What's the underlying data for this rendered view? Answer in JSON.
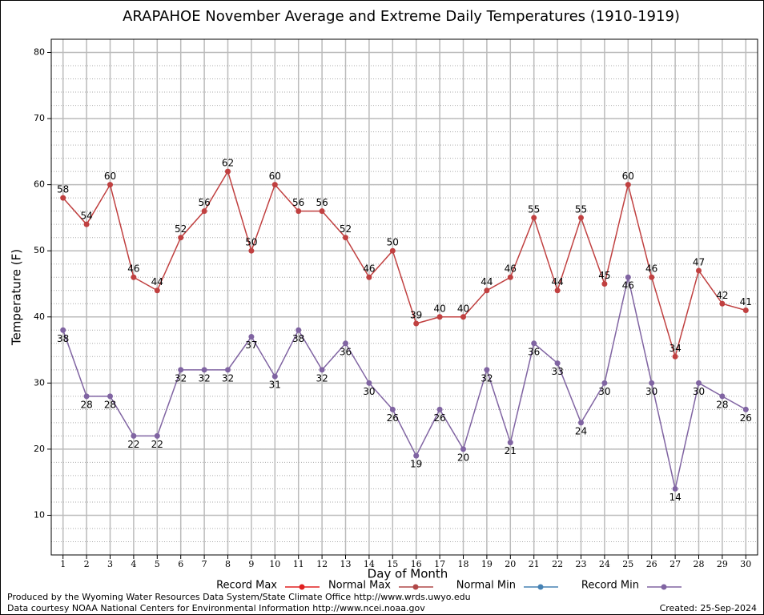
{
  "chart_data": {
    "type": "line",
    "title": "ARAPAHOE November Average and Extreme Daily Temperatures (1910-1919)",
    "xlabel": "Day of Month",
    "ylabel": "Temperature (F)",
    "x": [
      1,
      2,
      3,
      4,
      5,
      6,
      7,
      8,
      9,
      10,
      11,
      12,
      13,
      14,
      15,
      16,
      17,
      18,
      19,
      20,
      21,
      22,
      23,
      24,
      25,
      26,
      27,
      28,
      29,
      30
    ],
    "xlim": [
      0.5,
      30.5
    ],
    "xticks": [
      1,
      2,
      3,
      4,
      5,
      6,
      7,
      8,
      9,
      10,
      11,
      12,
      13,
      14,
      15,
      16,
      17,
      18,
      19,
      20,
      21,
      22,
      23,
      24,
      25,
      26,
      27,
      28,
      29,
      30
    ],
    "ylim": [
      4,
      82
    ],
    "yticks": [
      10,
      20,
      30,
      40,
      50,
      60,
      70,
      80
    ],
    "grid": true,
    "series": [
      {
        "name": "Record Max",
        "color": "#c04040",
        "legend_color": "#e02020",
        "label_position": "above",
        "values": [
          58,
          54,
          60,
          46,
          44,
          52,
          56,
          62,
          50,
          60,
          56,
          56,
          52,
          46,
          50,
          39,
          40,
          40,
          44,
          46,
          55,
          44,
          55,
          45,
          60,
          46,
          34,
          47,
          42,
          41
        ]
      },
      {
        "name": "Normal Max",
        "color": "#b04848",
        "values": [
          null,
          null,
          null,
          null,
          null,
          null,
          null,
          null,
          null,
          null,
          null,
          null,
          null,
          null,
          null,
          null,
          null,
          null,
          null,
          null,
          null,
          null,
          null,
          null,
          null,
          null,
          null,
          null,
          null,
          null
        ]
      },
      {
        "name": "Normal Min",
        "color": "#4682b4",
        "values": [
          null,
          null,
          null,
          null,
          null,
          null,
          null,
          null,
          null,
          null,
          null,
          null,
          null,
          null,
          null,
          null,
          null,
          null,
          null,
          null,
          null,
          null,
          null,
          null,
          null,
          null,
          null,
          null,
          null,
          null
        ]
      },
      {
        "name": "Record Min",
        "color": "#8064a2",
        "label_position": "below",
        "values": [
          38,
          28,
          28,
          22,
          22,
          32,
          32,
          32,
          37,
          31,
          38,
          32,
          36,
          30,
          26,
          19,
          26,
          20,
          32,
          21,
          36,
          33,
          24,
          30,
          46,
          30,
          14,
          30,
          28,
          26
        ]
      }
    ],
    "footer_left": [
      "Produced by the Wyoming Water Resources Data System/State Climate Office http://www.wrds.uwyo.edu",
      "Data courtesy NOAA National Centers for Environmental Information http://www.ncei.noaa.gov"
    ],
    "footer_right": "Created:  25-Sep-2024"
  }
}
